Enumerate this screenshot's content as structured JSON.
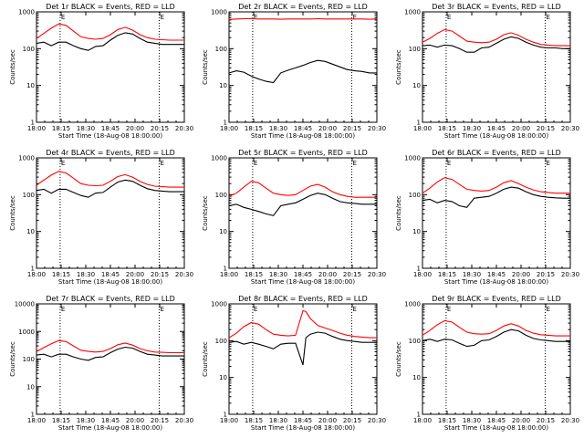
{
  "figure": {
    "background": "#ffffff",
    "events_color": "#000000",
    "lld_color": "#ff0000"
  },
  "chart_data": [
    {
      "type": "line",
      "title": "Det 1r BLACK = Events, RED = LLD",
      "xlabel": "Start Time (18-Aug-08 18:00:00)",
      "ylabel": "Counts/sec",
      "yscale": "log",
      "ylim": [
        1,
        1000
      ],
      "x_tick_labels": [
        "18:00",
        "18:15",
        "18:30",
        "18:45",
        "20:00",
        "20:15",
        "20:30"
      ],
      "y_tick_labels": [
        "1",
        "10",
        "100",
        "1000"
      ],
      "marker_labels": [
        "E",
        "E"
      ],
      "x": [
        0,
        0.05,
        0.1,
        0.15,
        0.2,
        0.25,
        0.3,
        0.35,
        0.4,
        0.45,
        0.5,
        0.55,
        0.6,
        0.65,
        0.7,
        0.75,
        0.8,
        0.85,
        0.9,
        0.95,
        1.0
      ],
      "series": [
        {
          "name": "LLD",
          "values": [
            190,
            260,
            360,
            470,
            430,
            300,
            210,
            190,
            180,
            190,
            240,
            330,
            380,
            320,
            240,
            200,
            180,
            175,
            170,
            170,
            170
          ]
        },
        {
          "name": "Events",
          "values": [
            140,
            150,
            120,
            150,
            150,
            120,
            100,
            90,
            115,
            120,
            170,
            230,
            270,
            250,
            190,
            150,
            140,
            130,
            130,
            130,
            130
          ]
        }
      ]
    },
    {
      "type": "line",
      "title": "Det 2r BLACK = Events, RED = LLD",
      "xlabel": "Start Time (18-Aug-08 18:00:00)",
      "ylabel": "Counts/sec",
      "yscale": "log",
      "ylim": [
        1,
        1000
      ],
      "x_tick_labels": [
        "18:00",
        "18:15",
        "18:30",
        "18:45",
        "20:00",
        "20:15",
        "20:30"
      ],
      "y_tick_labels": [
        "1",
        "10",
        "100",
        "1000"
      ],
      "marker_labels": [
        "E",
        "E"
      ],
      "x": [
        0,
        0.05,
        0.1,
        0.15,
        0.2,
        0.25,
        0.3,
        0.35,
        0.4,
        0.45,
        0.5,
        0.55,
        0.6,
        0.65,
        0.7,
        0.75,
        0.8,
        0.85,
        0.9,
        0.95,
        1.0
      ],
      "series": [
        {
          "name": "LLD",
          "values": [
            620,
            640,
            650,
            650,
            640,
            640,
            640,
            630,
            640,
            640,
            640,
            640,
            650,
            640,
            640,
            640,
            640,
            640,
            640,
            630,
            640
          ]
        },
        {
          "name": "Events",
          "values": [
            22,
            25,
            23,
            18,
            15,
            13,
            12,
            22,
            26,
            30,
            35,
            42,
            48,
            45,
            38,
            32,
            27,
            25,
            24,
            22,
            22
          ]
        }
      ]
    },
    {
      "type": "line",
      "title": "Det 3r BLACK = Events, RED = LLD",
      "xlabel": "Start Time (18-Aug-08 18:00:00)",
      "ylabel": "Counts/sec",
      "yscale": "log",
      "ylim": [
        1,
        1000
      ],
      "x_tick_labels": [
        "18:00",
        "18:15",
        "18:30",
        "18:45",
        "20:00",
        "20:15",
        "20:30"
      ],
      "y_tick_labels": [
        "1",
        "10",
        "100",
        "1000"
      ],
      "marker_labels": [
        "E",
        "E"
      ],
      "x": [
        0,
        0.05,
        0.1,
        0.15,
        0.2,
        0.25,
        0.3,
        0.35,
        0.4,
        0.45,
        0.5,
        0.55,
        0.6,
        0.65,
        0.7,
        0.75,
        0.8,
        0.85,
        0.9,
        0.95,
        1.0
      ],
      "series": [
        {
          "name": "LLD",
          "values": [
            150,
            190,
            260,
            330,
            300,
            220,
            160,
            150,
            145,
            150,
            180,
            240,
            270,
            230,
            180,
            150,
            130,
            125,
            120,
            120,
            120
          ]
        },
        {
          "name": "Events",
          "values": [
            120,
            125,
            110,
            125,
            120,
            100,
            80,
            80,
            105,
            110,
            140,
            180,
            210,
            190,
            150,
            125,
            110,
            105,
            105,
            100,
            100
          ]
        }
      ]
    },
    {
      "type": "line",
      "title": "Det 4r BLACK = Events, RED = LLD",
      "xlabel": "Start Time (18-Aug-08 18:00:00)",
      "ylabel": "Counts/sec",
      "yscale": "log",
      "ylim": [
        1,
        1000
      ],
      "x_tick_labels": [
        "18:00",
        "18:15",
        "18:30",
        "18:45",
        "20:00",
        "20:15",
        "20:30"
      ],
      "y_tick_labels": [
        "1",
        "10",
        "100",
        "1000"
      ],
      "marker_labels": [
        "E",
        "E"
      ],
      "x": [
        0,
        0.05,
        0.1,
        0.15,
        0.2,
        0.25,
        0.3,
        0.35,
        0.4,
        0.45,
        0.5,
        0.55,
        0.6,
        0.65,
        0.7,
        0.75,
        0.8,
        0.85,
        0.9,
        0.95,
        1.0
      ],
      "series": [
        {
          "name": "LLD",
          "values": [
            180,
            250,
            340,
            430,
            390,
            280,
            200,
            180,
            175,
            180,
            230,
            310,
            350,
            300,
            230,
            190,
            170,
            165,
            160,
            160,
            160
          ]
        },
        {
          "name": "Events",
          "values": [
            130,
            140,
            110,
            140,
            140,
            115,
            95,
            85,
            110,
            115,
            160,
            220,
            250,
            230,
            180,
            145,
            130,
            125,
            120,
            120,
            120
          ]
        }
      ]
    },
    {
      "type": "line",
      "title": "Det 5r BLACK = Events, RED = LLD",
      "xlabel": "Start Time (18-Aug-08 18:00:00)",
      "ylabel": "Counts/sec",
      "yscale": "log",
      "ylim": [
        1,
        1000
      ],
      "x_tick_labels": [
        "18:00",
        "18:15",
        "18:30",
        "18:45",
        "20:00",
        "20:15",
        "20:30"
      ],
      "y_tick_labels": [
        "1",
        "10",
        "100",
        "1000"
      ],
      "marker_labels": [
        "E",
        "E"
      ],
      "x": [
        0,
        0.05,
        0.1,
        0.15,
        0.2,
        0.25,
        0.3,
        0.35,
        0.4,
        0.45,
        0.5,
        0.55,
        0.6,
        0.65,
        0.7,
        0.75,
        0.8,
        0.85,
        0.9,
        0.95,
        1.0
      ],
      "series": [
        {
          "name": "LLD",
          "values": [
            90,
            110,
            160,
            230,
            210,
            150,
            110,
            100,
            95,
            100,
            130,
            170,
            190,
            160,
            120,
            100,
            90,
            85,
            85,
            85,
            85
          ]
        },
        {
          "name": "Events",
          "values": [
            50,
            55,
            45,
            40,
            35,
            30,
            27,
            50,
            55,
            60,
            75,
            95,
            110,
            100,
            80,
            65,
            60,
            58,
            55,
            55,
            55
          ]
        }
      ]
    },
    {
      "type": "line",
      "title": "Det 6r BLACK = Events, RED = LLD",
      "xlabel": "Start Time (18-Aug-08 18:00:00)",
      "ylabel": "Counts/sec",
      "yscale": "log",
      "ylim": [
        1,
        1000
      ],
      "x_tick_labels": [
        "18:00",
        "18:15",
        "18:30",
        "18:45",
        "20:00",
        "20:15",
        "20:30"
      ],
      "y_tick_labels": [
        "1",
        "10",
        "100",
        "1000"
      ],
      "marker_labels": [
        "E",
        "E"
      ],
      "x": [
        0,
        0.05,
        0.1,
        0.15,
        0.2,
        0.25,
        0.3,
        0.35,
        0.4,
        0.45,
        0.5,
        0.55,
        0.6,
        0.65,
        0.7,
        0.75,
        0.8,
        0.85,
        0.9,
        0.95,
        1.0
      ],
      "series": [
        {
          "name": "LLD",
          "values": [
            110,
            150,
            220,
            290,
            260,
            190,
            140,
            130,
            125,
            130,
            160,
            210,
            240,
            200,
            160,
            135,
            120,
            115,
            110,
            110,
            110
          ]
        },
        {
          "name": "Events",
          "values": [
            70,
            75,
            60,
            70,
            65,
            50,
            45,
            80,
            85,
            90,
            110,
            140,
            160,
            150,
            120,
            100,
            90,
            85,
            82,
            80,
            80
          ]
        }
      ]
    },
    {
      "type": "line",
      "title": "Det 7r BLACK = Events, RED = LLD",
      "xlabel": "Start Time (18-Aug-08 18:00:00)",
      "ylabel": "Counts/sec",
      "yscale": "log",
      "ylim": [
        1,
        10000
      ],
      "x_tick_labels": [
        "18:00",
        "18:15",
        "18:30",
        "18:45",
        "20:00",
        "20:15",
        "20:30"
      ],
      "y_tick_labels": [
        "1",
        "10",
        "100",
        "1000",
        "10000"
      ],
      "marker_labels": [
        "E",
        "E"
      ],
      "x": [
        0,
        0.05,
        0.1,
        0.15,
        0.2,
        0.25,
        0.3,
        0.35,
        0.4,
        0.45,
        0.5,
        0.55,
        0.6,
        0.65,
        0.7,
        0.75,
        0.8,
        0.85,
        0.9,
        0.95,
        1.0
      ],
      "series": [
        {
          "name": "LLD",
          "values": [
            190,
            260,
            360,
            470,
            430,
            300,
            210,
            190,
            180,
            190,
            240,
            330,
            380,
            320,
            240,
            200,
            180,
            175,
            170,
            170,
            170
          ]
        },
        {
          "name": "Events",
          "values": [
            140,
            150,
            120,
            150,
            150,
            120,
            100,
            90,
            115,
            120,
            170,
            230,
            270,
            250,
            190,
            150,
            140,
            130,
            130,
            130,
            130
          ]
        }
      ]
    },
    {
      "type": "line",
      "title": "Det 8r BLACK = Events, RED = LLD",
      "xlabel": "Start Time (18-Aug-08 18:00:00)",
      "ylabel": "Counts/sec",
      "yscale": "log",
      "ylim": [
        1,
        1000
      ],
      "x_tick_labels": [
        "18:00",
        "18:15",
        "18:30",
        "18:45",
        "20:00",
        "20:15",
        "20:30"
      ],
      "y_tick_labels": [
        "1",
        "10",
        "100",
        "1000"
      ],
      "marker_labels": [
        "E",
        "E"
      ],
      "x": [
        0,
        0.05,
        0.1,
        0.15,
        0.2,
        0.25,
        0.3,
        0.35,
        0.4,
        0.45,
        0.5,
        0.52,
        0.55,
        0.6,
        0.65,
        0.7,
        0.75,
        0.8,
        0.85,
        0.9,
        0.95,
        1.0
      ],
      "series": [
        {
          "name": "LLD",
          "values": [
            120,
            160,
            240,
            310,
            280,
            200,
            150,
            140,
            135,
            140,
            650,
            620,
            400,
            260,
            220,
            190,
            160,
            140,
            130,
            125,
            120,
            120
          ]
        },
        {
          "name": "Events",
          "values": [
            90,
            95,
            80,
            90,
            80,
            70,
            60,
            80,
            85,
            85,
            22,
            120,
            150,
            170,
            160,
            130,
            110,
            100,
            95,
            90,
            90,
            90
          ]
        }
      ]
    },
    {
      "type": "line",
      "title": "Det 9r BLACK = Events, RED = LLD",
      "xlabel": "Start Time (18-Aug-08 18:00:00)",
      "ylabel": "Counts/sec",
      "yscale": "log",
      "ylim": [
        1,
        1000
      ],
      "x_tick_labels": [
        "18:00",
        "18:15",
        "18:30",
        "18:45",
        "20:00",
        "20:15",
        "20:30"
      ],
      "y_tick_labels": [
        "1",
        "10",
        "100",
        "1000"
      ],
      "marker_labels": [
        "E",
        "E"
      ],
      "x": [
        0,
        0.05,
        0.1,
        0.15,
        0.2,
        0.25,
        0.3,
        0.35,
        0.4,
        0.45,
        0.5,
        0.55,
        0.6,
        0.65,
        0.7,
        0.75,
        0.8,
        0.85,
        0.9,
        0.95,
        1.0
      ],
      "series": [
        {
          "name": "LLD",
          "values": [
            140,
            190,
            270,
            350,
            320,
            230,
            170,
            155,
            150,
            155,
            190,
            250,
            290,
            250,
            190,
            160,
            145,
            140,
            135,
            135,
            135
          ]
        },
        {
          "name": "Events",
          "values": [
            100,
            110,
            95,
            110,
            105,
            85,
            70,
            75,
            100,
            105,
            130,
            170,
            200,
            185,
            140,
            115,
            105,
            100,
            95,
            95,
            95
          ]
        }
      ]
    }
  ]
}
